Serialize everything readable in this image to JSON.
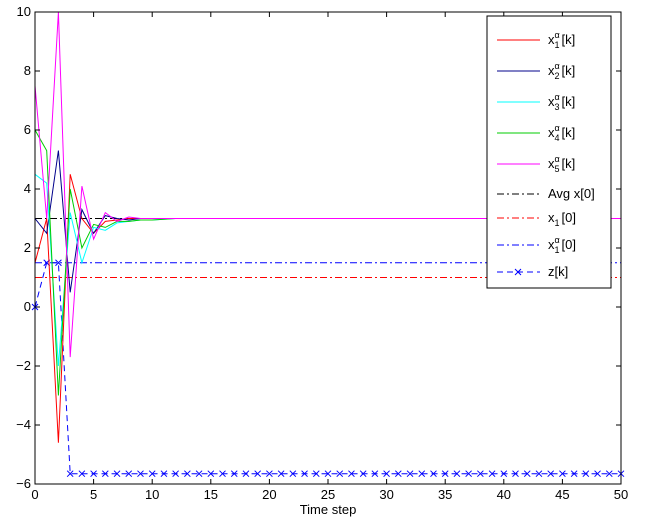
{
  "chart_data": {
    "type": "line",
    "xlabel": "Time step",
    "ylabel": "",
    "title": "",
    "xlim": [
      0,
      50
    ],
    "ylim": [
      -6,
      10
    ],
    "xticks": [
      0,
      5,
      10,
      15,
      20,
      25,
      30,
      35,
      40,
      45,
      50
    ],
    "yticks": [
      -6,
      -4,
      -2,
      0,
      2,
      4,
      6,
      8,
      10
    ],
    "grid": false,
    "legend_position": "top-right",
    "series": [
      {
        "name": "x_1^α[k]",
        "label": {
          "base": "x",
          "sub": "1",
          "sup": "α",
          "tail": "[k]"
        },
        "color": "#ff0000",
        "dash": "solid",
        "marker": "none",
        "x": [
          0,
          1,
          2,
          3,
          4,
          5,
          6,
          7,
          8,
          9,
          10,
          12,
          15,
          20,
          25,
          30,
          35,
          40,
          45,
          50
        ],
        "y": [
          1.5,
          3.0,
          -4.6,
          4.5,
          3.0,
          2.5,
          2.9,
          2.95,
          3.0,
          3.0,
          3.0,
          3.0,
          3.0,
          3.0,
          3.0,
          3.0,
          3.0,
          3.0,
          3.0,
          3.0
        ]
      },
      {
        "name": "x_2^α[k]",
        "label": {
          "base": "x",
          "sub": "2",
          "sup": "α",
          "tail": "[k]"
        },
        "color": "#00008b",
        "dash": "solid",
        "marker": "none",
        "x": [
          0,
          1,
          2,
          3,
          4,
          5,
          6,
          7,
          8,
          9,
          10,
          12,
          15,
          20,
          25,
          30,
          35,
          40,
          45,
          50
        ],
        "y": [
          3.0,
          2.5,
          5.3,
          0.5,
          3.3,
          2.5,
          3.1,
          3.0,
          2.95,
          3.0,
          3.0,
          3.0,
          3.0,
          3.0,
          3.0,
          3.0,
          3.0,
          3.0,
          3.0,
          3.0
        ]
      },
      {
        "name": "x_3^α[k]",
        "label": {
          "base": "x",
          "sub": "3",
          "sup": "α",
          "tail": "[k]"
        },
        "color": "#00ffff",
        "dash": "solid",
        "marker": "none",
        "x": [
          0,
          1,
          2,
          3,
          4,
          5,
          6,
          7,
          8,
          9,
          10,
          12,
          15,
          20,
          25,
          30,
          35,
          40,
          45,
          50
        ],
        "y": [
          4.5,
          4.2,
          -2.0,
          3.2,
          1.5,
          2.7,
          2.6,
          2.85,
          2.9,
          2.95,
          2.95,
          3.0,
          3.0,
          3.0,
          3.0,
          3.0,
          3.0,
          3.0,
          3.0,
          3.0
        ]
      },
      {
        "name": "x_4^α[k]",
        "label": {
          "base": "x",
          "sub": "4",
          "sup": "α",
          "tail": "[k]"
        },
        "color": "#00cc00",
        "dash": "solid",
        "marker": "none",
        "x": [
          0,
          1,
          2,
          3,
          4,
          5,
          6,
          7,
          8,
          9,
          10,
          12,
          15,
          20,
          25,
          30,
          35,
          40,
          45,
          50
        ],
        "y": [
          6.0,
          5.3,
          -3.0,
          4.0,
          2.0,
          2.8,
          2.7,
          2.9,
          2.9,
          2.95,
          2.95,
          3.0,
          3.0,
          3.0,
          3.0,
          3.0,
          3.0,
          3.0,
          3.0,
          3.0
        ]
      },
      {
        "name": "x_5^α[k]",
        "label": {
          "base": "x",
          "sub": "5",
          "sup": "α",
          "tail": "[k]"
        },
        "color": "#ff00ff",
        "dash": "solid",
        "marker": "none",
        "x": [
          0,
          1,
          2,
          3,
          4,
          5,
          6,
          7,
          8,
          9,
          10,
          12,
          15,
          20,
          25,
          30,
          35,
          40,
          45,
          50
        ],
        "y": [
          7.5,
          3.0,
          10.0,
          -1.7,
          4.1,
          2.3,
          3.2,
          2.9,
          3.05,
          3.0,
          3.0,
          3.0,
          3.0,
          3.0,
          3.0,
          3.0,
          3.0,
          3.0,
          3.0,
          3.0
        ]
      },
      {
        "name": "Avg x[0]",
        "label": {
          "base": "Avg x[0]",
          "sub": "",
          "sup": "",
          "tail": ""
        },
        "color": "#000000",
        "dash": "dashdot",
        "marker": "none",
        "x": [
          0,
          50
        ],
        "y": [
          3.0,
          3.0
        ]
      },
      {
        "name": "x_1[0]",
        "label": {
          "base": "x",
          "sub": "1",
          "sup": "",
          "tail": "[0]"
        },
        "color": "#ff0000",
        "dash": "dashdot",
        "marker": "none",
        "x": [
          0,
          50
        ],
        "y": [
          1.0,
          1.0
        ]
      },
      {
        "name": "x_1^α[0]",
        "label": {
          "base": "x",
          "sub": "1",
          "sup": "α",
          "tail": "[0]"
        },
        "color": "#0000ff",
        "dash": "dashdot",
        "marker": "none",
        "x": [
          0,
          50
        ],
        "y": [
          1.5,
          1.5
        ]
      },
      {
        "name": "z[k]",
        "label": {
          "base": "z[k]",
          "sub": "",
          "sup": "",
          "tail": ""
        },
        "color": "#0000ff",
        "dash": "dashed",
        "marker": "x",
        "x": [
          0,
          1,
          2,
          3,
          4,
          5,
          6,
          7,
          8,
          9,
          10,
          11,
          12,
          13,
          14,
          15,
          16,
          17,
          18,
          19,
          20,
          21,
          22,
          23,
          24,
          25,
          26,
          27,
          28,
          29,
          30,
          31,
          32,
          33,
          34,
          35,
          36,
          37,
          38,
          39,
          40,
          41,
          42,
          43,
          44,
          45,
          46,
          47,
          48,
          49,
          50
        ],
        "y": [
          0,
          1.5,
          1.5,
          -5.65,
          -5.65,
          -5.65,
          -5.65,
          -5.65,
          -5.65,
          -5.65,
          -5.65,
          -5.65,
          -5.65,
          -5.65,
          -5.65,
          -5.65,
          -5.65,
          -5.65,
          -5.65,
          -5.65,
          -5.65,
          -5.65,
          -5.65,
          -5.65,
          -5.65,
          -5.65,
          -5.65,
          -5.65,
          -5.65,
          -5.65,
          -5.65,
          -5.65,
          -5.65,
          -5.65,
          -5.65,
          -5.65,
          -5.65,
          -5.65,
          -5.65,
          -5.65,
          -5.65,
          -5.65,
          -5.65,
          -5.65,
          -5.65,
          -5.65,
          -5.65,
          -5.65,
          -5.65,
          -5.65,
          -5.65
        ]
      }
    ]
  }
}
